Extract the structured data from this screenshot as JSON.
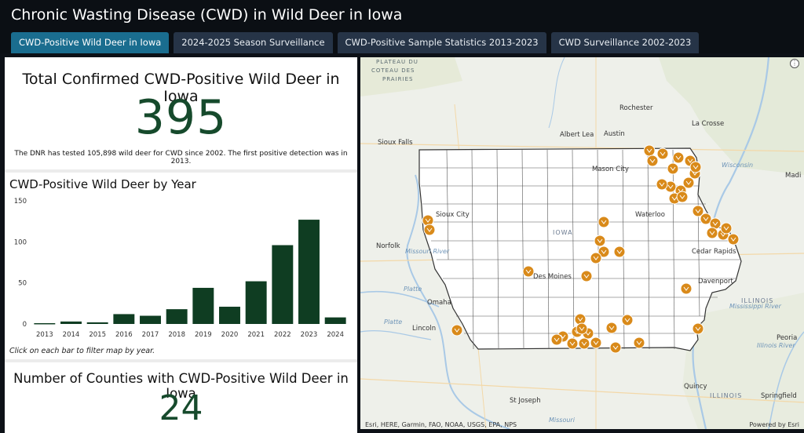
{
  "header": {
    "title": "Chronic Wasting Disease (CWD) in Wild Deer in Iowa",
    "tabs": [
      {
        "label": "CWD-Positive Wild Deer in Iowa",
        "active": true
      },
      {
        "label": "2024-2025 Season Surveillance",
        "active": false
      },
      {
        "label": "CWD-Positive Sample Statistics 2013-2023",
        "active": false
      },
      {
        "label": "CWD Surveillance 2002-2023",
        "active": false
      }
    ]
  },
  "summary": {
    "title": "Total Confirmed CWD-Positive Wild Deer in Iowa",
    "value": "395",
    "subtitle": "The DNR has tested 105,898 wild deer for CWD since 2002. The first positive detection was in 2013."
  },
  "chart_data": {
    "type": "bar",
    "title": "CWD-Positive Wild Deer by Year",
    "categories": [
      "2013",
      "2014",
      "2015",
      "2016",
      "2017",
      "2018",
      "2019",
      "2020",
      "2021",
      "2022",
      "2023",
      "2024"
    ],
    "values": [
      1,
      3,
      2,
      12,
      10,
      18,
      44,
      21,
      52,
      96,
      127,
      8
    ],
    "ylim": [
      0,
      150
    ],
    "yticks": [
      "0",
      "50",
      "100",
      "150"
    ],
    "grid": false,
    "bar_color": "#0f3d22",
    "note": "Click on each bar to filter map by year."
  },
  "counties": {
    "title": "Number of Counties with CWD-Positive Wild Deer in Iowa",
    "value": "24"
  },
  "map": {
    "attribution": "Esri, HERE, Garmin, FAO, NOAA, USGS, EPA, NPS",
    "powered": "Powered by Esri",
    "marker_color": "#d98a1a",
    "labels": {
      "plateau": "PLATEAU DU",
      "coteau": "COTEAU DES",
      "prairies": "PRAIRIES",
      "rochester": "Rochester",
      "albert_lea": "Albert Lea",
      "austin": "Austin",
      "la_crosse": "La Crosse",
      "sioux_falls": "Sioux Falls",
      "mason_city": "Mason City",
      "wisconsin": "Wisconsin",
      "madi": "Madi",
      "sioux_city": "Sioux City",
      "waterloo": "Waterloo",
      "iowa": "IOWA",
      "norfolk": "Norfolk",
      "cedar_rapids": "Cedar Rapids",
      "des_moines": "Des Moines",
      "davenport": "Davenport",
      "omaha": "Omaha",
      "illinois": "ILLINOIS",
      "lincoln": "Lincoln",
      "peoria": "Peoria",
      "quincy": "Quincy",
      "st_joseph": "St Joseph",
      "illinois2": "ILLINOIS",
      "springfield": "Springfield",
      "platte": "Platte",
      "missouri_r": "Missouri River",
      "platte2": "Platte",
      "mississippi": "Mississippi River",
      "illinois_r": "Illinois River",
      "missouri": "Missouri"
    }
  }
}
